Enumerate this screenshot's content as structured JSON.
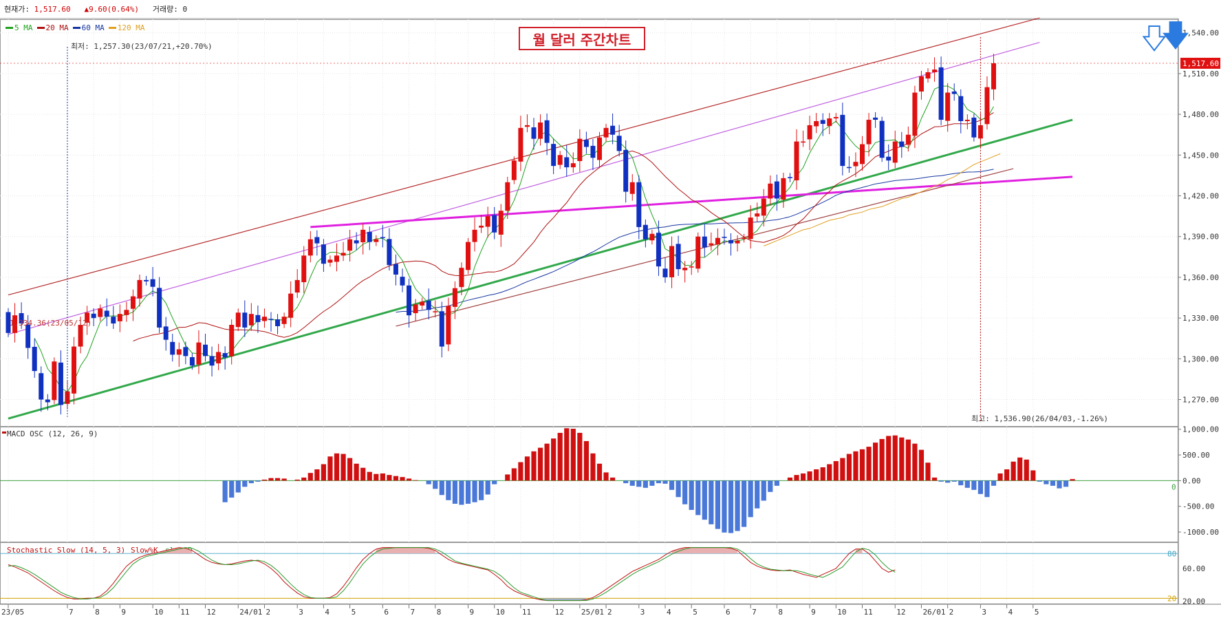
{
  "header": {
    "price_label": "현재가:",
    "price_value": "1,517.60",
    "change_arrow": "▲",
    "change_value": "9.60(0.64%)",
    "volume_label": "거래량:",
    "volume_value": "0"
  },
  "title": "월 달러 주간차트",
  "legend": [
    {
      "label": "5 MA",
      "color": "#1fa31f"
    },
    {
      "label": "20 MA",
      "color": "#b01010"
    },
    {
      "label": "60 MA",
      "color": "#1535a0"
    },
    {
      "label": "120 MA",
      "color": "#e0a020"
    }
  ],
  "annotations": {
    "low": "최저: 1,257.30(23/07/21,+20.70%)",
    "start": "1,334.36(23/05/12)",
    "high": "최고: 1,536.90(26/04/03,-1.26%)",
    "price_tag": "1,517.60"
  },
  "macd_label": "MACD OSC (12, 26, 9)",
  "stoch_label": "Stochastic Slow (14, 5, 3)",
  "stoch_series": [
    "Slow%K",
    "slow%D"
  ],
  "chart_data": [
    {
      "type": "candlestick",
      "title": "월 달러 주간차트",
      "ylim": [
        1250,
        1550
      ],
      "y_ticks": [
        "1,540.00",
        "1,510.00",
        "1,480.00",
        "1,450.00",
        "1,420.00",
        "1,390.00",
        "1,360.00",
        "1,330.00",
        "1,300.00",
        "1,270.00"
      ],
      "y_tick_values": [
        1540,
        1510,
        1480,
        1450,
        1420,
        1390,
        1360,
        1330,
        1300,
        1270
      ],
      "x_ticks": [
        "23/05",
        "7",
        "8",
        "9",
        "10",
        "11",
        "12",
        "24/01",
        "2",
        "3",
        "4",
        "5",
        "6",
        "7",
        "8",
        "9",
        "10",
        "11",
        "12",
        "25/01",
        "2",
        "3",
        "4",
        "5",
        "6",
        "7",
        "8",
        "9",
        "10",
        "11",
        "12",
        "26/01",
        "2",
        "3",
        "4",
        "5"
      ],
      "x_tick_weeks": [
        0,
        9,
        13,
        17,
        22,
        26,
        30,
        35,
        39,
        44,
        48,
        52,
        57,
        61,
        65,
        70,
        74,
        78,
        83,
        87,
        91,
        96,
        100,
        104,
        109,
        113,
        117,
        122,
        126,
        130,
        135,
        139,
        143,
        148,
        152,
        156
      ],
      "closes": [
        1319,
        1332,
        1326,
        1308,
        1291,
        1270,
        1268,
        1298,
        1266,
        1276,
        1309,
        1325,
        1334,
        1330,
        1337,
        1331,
        1326,
        1333,
        1336,
        1346,
        1358,
        1357,
        1353,
        1323,
        1314,
        1303,
        1307,
        1302,
        1295,
        1312,
        1302,
        1295,
        1305,
        1301,
        1325,
        1334,
        1323,
        1333,
        1327,
        1331,
        1329,
        1324,
        1331,
        1348,
        1358,
        1376,
        1388,
        1385,
        1370,
        1373,
        1376,
        1378,
        1388,
        1385,
        1395,
        1386,
        1388,
        1389,
        1369,
        1362,
        1354,
        1332,
        1340,
        1342,
        1336,
        1335,
        1309,
        1339,
        1352,
        1367,
        1386,
        1395,
        1398,
        1405,
        1393,
        1409,
        1430,
        1446,
        1470,
        1472,
        1462,
        1474,
        1459,
        1442,
        1450,
        1441,
        1444,
        1462,
        1456,
        1448,
        1463,
        1470,
        1465,
        1453,
        1423,
        1430,
        1397,
        1388,
        1392,
        1368,
        1360,
        1383,
        1366,
        1367,
        1368,
        1390,
        1382,
        1385,
        1389,
        1389,
        1385,
        1387,
        1389,
        1404,
        1407,
        1418,
        1429,
        1418,
        1433,
        1433,
        1460,
        1460,
        1472,
        1475,
        1473,
        1477,
        1478,
        1442,
        1441,
        1445,
        1458,
        1476,
        1476,
        1448,
        1446,
        1460,
        1456,
        1465,
        1496,
        1508,
        1511,
        1513,
        1476,
        1496,
        1495,
        1475,
        1476,
        1463,
        1472,
        1500,
        1517.6
      ],
      "ma120": {
        "start_week": 115,
        "values": [
          1383,
          1385,
          1387,
          1389,
          1391,
          1393,
          1395,
          1396,
          1398,
          1400,
          1402,
          1403,
          1404,
          1406,
          1407,
          1408,
          1410,
          1411,
          1412,
          1414,
          1416,
          1418,
          1419,
          1421,
          1423,
          1425,
          1427,
          1429,
          1432,
          1434,
          1437,
          1440,
          1443,
          1445,
          1447,
          1449,
          1451
        ]
      },
      "trendlines": [
        {
          "color": "#b52a2a",
          "from": [
            0,
            1347
          ],
          "to": [
            157,
            1551
          ]
        },
        {
          "color": "#c060e0",
          "from": [
            0,
            1318
          ],
          "to": [
            157,
            1533
          ]
        },
        {
          "color": "#31a84a",
          "from": [
            0,
            1256
          ],
          "to": [
            162,
            1476
          ]
        },
        {
          "color": "#e020e0",
          "from": [
            46,
            1397
          ],
          "to": [
            162,
            1434
          ]
        },
        {
          "color": "#a04040",
          "from": [
            59,
            1324
          ],
          "to": [
            153,
            1440
          ]
        }
      ]
    },
    {
      "type": "bar",
      "title": "MACD OSC (12, 26, 9)",
      "ylim": [
        -1200,
        1050
      ],
      "y_ticks": [
        "1,000.00",
        "500.00",
        "0.00",
        "-500.00",
        "-1000.00"
      ],
      "y_tick_values": [
        1000,
        500,
        0,
        -500,
        -1000
      ],
      "values": [
        0,
        0,
        0,
        0,
        0,
        0,
        0,
        0,
        0,
        0,
        0,
        0,
        0,
        0,
        0,
        0,
        0,
        0,
        0,
        0,
        0,
        0,
        0,
        0,
        0,
        0,
        0,
        0,
        0,
        0,
        0,
        0,
        0,
        -420,
        -330,
        -230,
        -120,
        -50,
        -20,
        20,
        50,
        50,
        40,
        0,
        20,
        60,
        150,
        220,
        320,
        470,
        530,
        520,
        440,
        330,
        250,
        170,
        130,
        140,
        110,
        90,
        70,
        40,
        10,
        0,
        -70,
        -160,
        -280,
        -380,
        -450,
        -470,
        -450,
        -420,
        -380,
        -270,
        -70,
        0,
        120,
        240,
        360,
        470,
        570,
        640,
        720,
        820,
        930,
        1020,
        1010,
        930,
        770,
        530,
        330,
        160,
        60,
        0,
        -50,
        -100,
        -120,
        -140,
        -100,
        -50,
        -60,
        -180,
        -320,
        -460,
        -570,
        -670,
        -760,
        -850,
        -940,
        -1010,
        -1020,
        -980,
        -900,
        -710,
        -540,
        -390,
        -220,
        -100,
        0,
        60,
        110,
        140,
        180,
        220,
        260,
        320,
        380,
        440,
        520,
        570,
        610,
        660,
        740,
        810,
        870,
        880,
        840,
        800,
        720,
        600,
        350,
        60,
        -20,
        -40,
        -20,
        -90,
        -140,
        -180,
        -260,
        -320,
        -100,
        140,
        220,
        370,
        450,
        410,
        200,
        -20,
        -70,
        -100,
        -150,
        -120,
        30
      ]
    },
    {
      "type": "line",
      "title": "Stochastic Slow (14, 5, 3)",
      "ylim": [
        12,
        95
      ],
      "y_ticks": [
        "80",
        "60.00",
        "20",
        "20.00"
      ],
      "y_tick_values": [
        80,
        60,
        20
      ],
      "series": [
        {
          "name": "Slow%K",
          "color": "#c01010",
          "values": [
            65,
            62,
            58,
            54,
            48,
            42,
            36,
            30,
            25,
            21,
            19,
            19,
            20,
            20,
            23,
            30,
            40,
            52,
            63,
            70,
            75,
            78,
            80,
            82,
            84,
            86,
            88,
            87,
            84,
            78,
            72,
            68,
            66,
            65,
            66,
            68,
            70,
            71,
            70,
            66,
            60,
            52,
            42,
            34,
            27,
            22,
            20,
            20,
            20,
            21,
            26,
            36,
            48,
            61,
            72,
            80,
            86,
            88,
            88,
            88,
            88,
            88,
            88,
            88,
            87,
            84,
            78,
            72,
            68,
            66,
            64,
            62,
            60,
            58,
            52,
            45,
            36,
            30,
            26,
            23,
            20,
            18,
            17,
            17,
            17,
            17,
            17,
            17,
            18,
            21,
            26,
            32,
            38,
            44,
            50,
            56,
            60,
            64,
            68,
            72,
            78,
            83,
            86,
            88,
            88,
            88,
            88,
            88,
            88,
            88,
            87,
            84,
            76,
            68,
            63,
            60,
            58,
            57,
            57,
            58,
            55,
            52,
            50,
            48,
            52,
            56,
            60,
            70,
            80,
            86,
            86,
            80,
            70,
            60,
            55,
            58
          ]
        },
        {
          "name": "slow%D",
          "color": "#2a9a2a",
          "values": [
            63,
            64,
            61,
            57,
            52,
            46,
            40,
            34,
            28,
            24,
            21,
            19,
            19,
            20,
            21,
            26,
            34,
            45,
            56,
            66,
            72,
            76,
            78,
            80,
            82,
            84,
            86,
            88,
            87,
            83,
            77,
            71,
            67,
            65,
            65,
            66,
            68,
            70,
            71,
            69,
            64,
            57,
            48,
            39,
            31,
            25,
            21,
            20,
            20,
            20,
            22,
            30,
            41,
            54,
            66,
            75,
            82,
            86,
            87,
            88,
            88,
            88,
            88,
            88,
            88,
            86,
            82,
            76,
            70,
            67,
            65,
            63,
            61,
            59,
            56,
            50,
            42,
            34,
            28,
            25,
            22,
            19,
            17,
            17,
            17,
            17,
            17,
            17,
            17,
            19,
            23,
            28,
            34,
            40,
            46,
            52,
            57,
            61,
            65,
            69,
            74,
            79,
            83,
            86,
            88,
            88,
            88,
            88,
            88,
            88,
            88,
            86,
            81,
            73,
            66,
            62,
            59,
            58,
            57,
            57,
            57,
            55,
            52,
            50,
            48,
            52,
            57,
            62,
            72,
            82,
            87,
            85,
            78,
            68,
            60,
            55
          ]
        }
      ]
    }
  ]
}
